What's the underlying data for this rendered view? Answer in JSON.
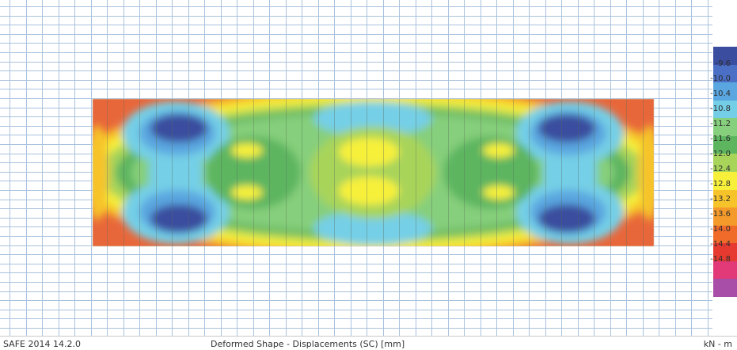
{
  "status_bar": {
    "version": "SAFE 2014 14.2.0",
    "title": "Deformed Shape - Displacements (SC)  [mm]",
    "units": "kN - m"
  },
  "legend": {
    "values": [
      "-9.6",
      "-10.0",
      "-10.4",
      "-10.8",
      "-11.2",
      "-11.6",
      "-12.0",
      "-12.4",
      "-12.8",
      "-13.2",
      "-13.6",
      "-14.0",
      "-14.4",
      "-14.8"
    ],
    "colors": [
      "#3a4d9e",
      "#4a6fc4",
      "#5aa6e0",
      "#74cfe6",
      "#86cf7c",
      "#5db560",
      "#a8d45a",
      "#f7f03a",
      "#f6c42a",
      "#f49a2a",
      "#f06a2a",
      "#e63a30",
      "#e23a78",
      "#a94ea8"
    ]
  },
  "plot": {
    "grid_color": "#a9c2dd",
    "slab_edge_color": "#e63a30"
  }
}
